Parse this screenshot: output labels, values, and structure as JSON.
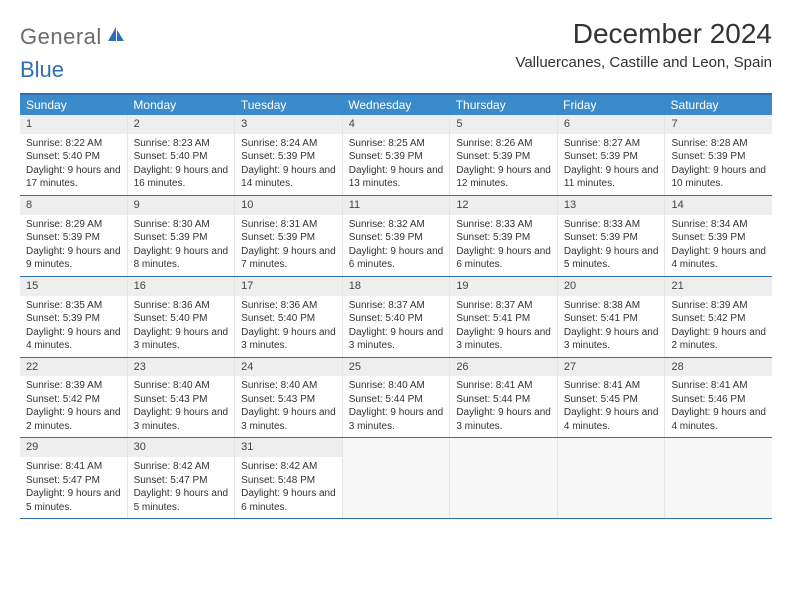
{
  "brand": {
    "part1": "General",
    "part2": "Blue"
  },
  "title": "December 2024",
  "location": "Valluercanes, Castille and Leon, Spain",
  "colors": {
    "header_bar": "#3b8bca",
    "rule": "#2e6fb3",
    "daynum_bg": "#eeeeee",
    "logo_gray": "#6b6b6b",
    "logo_blue": "#2e6fb3"
  },
  "weekdays": [
    "Sunday",
    "Monday",
    "Tuesday",
    "Wednesday",
    "Thursday",
    "Friday",
    "Saturday"
  ],
  "weeks": [
    [
      {
        "n": "1",
        "sr": "Sunrise: 8:22 AM",
        "ss": "Sunset: 5:40 PM",
        "dl": "Daylight: 9 hours and 17 minutes."
      },
      {
        "n": "2",
        "sr": "Sunrise: 8:23 AM",
        "ss": "Sunset: 5:40 PM",
        "dl": "Daylight: 9 hours and 16 minutes."
      },
      {
        "n": "3",
        "sr": "Sunrise: 8:24 AM",
        "ss": "Sunset: 5:39 PM",
        "dl": "Daylight: 9 hours and 14 minutes."
      },
      {
        "n": "4",
        "sr": "Sunrise: 8:25 AM",
        "ss": "Sunset: 5:39 PM",
        "dl": "Daylight: 9 hours and 13 minutes."
      },
      {
        "n": "5",
        "sr": "Sunrise: 8:26 AM",
        "ss": "Sunset: 5:39 PM",
        "dl": "Daylight: 9 hours and 12 minutes."
      },
      {
        "n": "6",
        "sr": "Sunrise: 8:27 AM",
        "ss": "Sunset: 5:39 PM",
        "dl": "Daylight: 9 hours and 11 minutes."
      },
      {
        "n": "7",
        "sr": "Sunrise: 8:28 AM",
        "ss": "Sunset: 5:39 PM",
        "dl": "Daylight: 9 hours and 10 minutes."
      }
    ],
    [
      {
        "n": "8",
        "sr": "Sunrise: 8:29 AM",
        "ss": "Sunset: 5:39 PM",
        "dl": "Daylight: 9 hours and 9 minutes."
      },
      {
        "n": "9",
        "sr": "Sunrise: 8:30 AM",
        "ss": "Sunset: 5:39 PM",
        "dl": "Daylight: 9 hours and 8 minutes."
      },
      {
        "n": "10",
        "sr": "Sunrise: 8:31 AM",
        "ss": "Sunset: 5:39 PM",
        "dl": "Daylight: 9 hours and 7 minutes."
      },
      {
        "n": "11",
        "sr": "Sunrise: 8:32 AM",
        "ss": "Sunset: 5:39 PM",
        "dl": "Daylight: 9 hours and 6 minutes."
      },
      {
        "n": "12",
        "sr": "Sunrise: 8:33 AM",
        "ss": "Sunset: 5:39 PM",
        "dl": "Daylight: 9 hours and 6 minutes."
      },
      {
        "n": "13",
        "sr": "Sunrise: 8:33 AM",
        "ss": "Sunset: 5:39 PM",
        "dl": "Daylight: 9 hours and 5 minutes."
      },
      {
        "n": "14",
        "sr": "Sunrise: 8:34 AM",
        "ss": "Sunset: 5:39 PM",
        "dl": "Daylight: 9 hours and 4 minutes."
      }
    ],
    [
      {
        "n": "15",
        "sr": "Sunrise: 8:35 AM",
        "ss": "Sunset: 5:39 PM",
        "dl": "Daylight: 9 hours and 4 minutes."
      },
      {
        "n": "16",
        "sr": "Sunrise: 8:36 AM",
        "ss": "Sunset: 5:40 PM",
        "dl": "Daylight: 9 hours and 3 minutes."
      },
      {
        "n": "17",
        "sr": "Sunrise: 8:36 AM",
        "ss": "Sunset: 5:40 PM",
        "dl": "Daylight: 9 hours and 3 minutes."
      },
      {
        "n": "18",
        "sr": "Sunrise: 8:37 AM",
        "ss": "Sunset: 5:40 PM",
        "dl": "Daylight: 9 hours and 3 minutes."
      },
      {
        "n": "19",
        "sr": "Sunrise: 8:37 AM",
        "ss": "Sunset: 5:41 PM",
        "dl": "Daylight: 9 hours and 3 minutes."
      },
      {
        "n": "20",
        "sr": "Sunrise: 8:38 AM",
        "ss": "Sunset: 5:41 PM",
        "dl": "Daylight: 9 hours and 3 minutes."
      },
      {
        "n": "21",
        "sr": "Sunrise: 8:39 AM",
        "ss": "Sunset: 5:42 PM",
        "dl": "Daylight: 9 hours and 2 minutes."
      }
    ],
    [
      {
        "n": "22",
        "sr": "Sunrise: 8:39 AM",
        "ss": "Sunset: 5:42 PM",
        "dl": "Daylight: 9 hours and 2 minutes."
      },
      {
        "n": "23",
        "sr": "Sunrise: 8:40 AM",
        "ss": "Sunset: 5:43 PM",
        "dl": "Daylight: 9 hours and 3 minutes."
      },
      {
        "n": "24",
        "sr": "Sunrise: 8:40 AM",
        "ss": "Sunset: 5:43 PM",
        "dl": "Daylight: 9 hours and 3 minutes."
      },
      {
        "n": "25",
        "sr": "Sunrise: 8:40 AM",
        "ss": "Sunset: 5:44 PM",
        "dl": "Daylight: 9 hours and 3 minutes."
      },
      {
        "n": "26",
        "sr": "Sunrise: 8:41 AM",
        "ss": "Sunset: 5:44 PM",
        "dl": "Daylight: 9 hours and 3 minutes."
      },
      {
        "n": "27",
        "sr": "Sunrise: 8:41 AM",
        "ss": "Sunset: 5:45 PM",
        "dl": "Daylight: 9 hours and 4 minutes."
      },
      {
        "n": "28",
        "sr": "Sunrise: 8:41 AM",
        "ss": "Sunset: 5:46 PM",
        "dl": "Daylight: 9 hours and 4 minutes."
      }
    ],
    [
      {
        "n": "29",
        "sr": "Sunrise: 8:41 AM",
        "ss": "Sunset: 5:47 PM",
        "dl": "Daylight: 9 hours and 5 minutes."
      },
      {
        "n": "30",
        "sr": "Sunrise: 8:42 AM",
        "ss": "Sunset: 5:47 PM",
        "dl": "Daylight: 9 hours and 5 minutes."
      },
      {
        "n": "31",
        "sr": "Sunrise: 8:42 AM",
        "ss": "Sunset: 5:48 PM",
        "dl": "Daylight: 9 hours and 6 minutes."
      },
      null,
      null,
      null,
      null
    ]
  ]
}
